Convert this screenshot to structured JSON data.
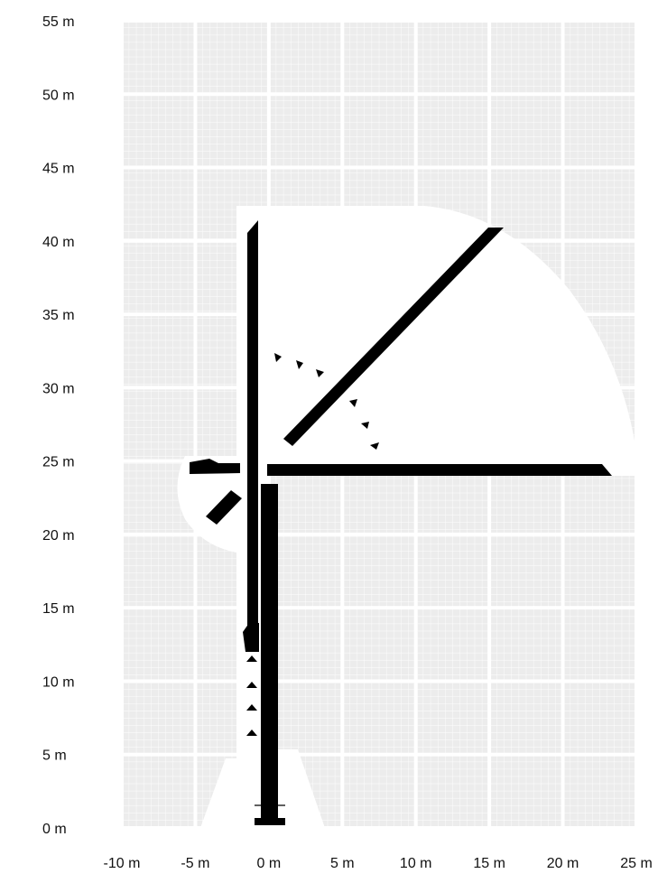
{
  "diagram": {
    "x_unit": "m",
    "y_unit": "m",
    "x_ticks": [
      {
        "value": -10,
        "label": "-10 m"
      },
      {
        "value": -5,
        "label": "-5 m"
      },
      {
        "value": 0,
        "label": "0 m"
      },
      {
        "value": 5,
        "label": "5 m"
      },
      {
        "value": 10,
        "label": "10 m"
      },
      {
        "value": 15,
        "label": "15 m"
      },
      {
        "value": 20,
        "label": "20 m"
      },
      {
        "value": 25,
        "label": "25 m"
      }
    ],
    "y_ticks": [
      {
        "value": 0,
        "label": "0 m"
      },
      {
        "value": 5,
        "label": "5 m"
      },
      {
        "value": 10,
        "label": "10 m"
      },
      {
        "value": 15,
        "label": "15 m"
      },
      {
        "value": 20,
        "label": "20 m"
      },
      {
        "value": 25,
        "label": "25 m"
      },
      {
        "value": 30,
        "label": "30 m"
      },
      {
        "value": 35,
        "label": "35 m"
      },
      {
        "value": 40,
        "label": "40 m"
      },
      {
        "value": 45,
        "label": "45 m"
      },
      {
        "value": 50,
        "label": "50 m"
      },
      {
        "value": 55,
        "label": "55 m"
      }
    ],
    "xlim": [
      -10,
      25
    ],
    "ylim": [
      0,
      55
    ],
    "grid": true,
    "colors": {
      "grid_fill": "#ececec",
      "grid_line": "#ffffff",
      "envelope": "#ffffff",
      "machine": "#000000",
      "text": "#111111"
    }
  }
}
